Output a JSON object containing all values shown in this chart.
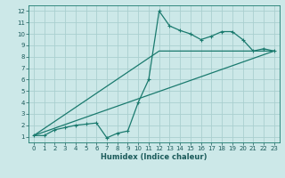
{
  "xlabel": "Humidex (Indice chaleur)",
  "bg_color": "#cce8e8",
  "grid_color": "#aacfcf",
  "line_color": "#1a7a6e",
  "xlim": [
    -0.5,
    23.5
  ],
  "ylim": [
    0.5,
    12.5
  ],
  "xticks": [
    0,
    1,
    2,
    3,
    4,
    5,
    6,
    7,
    8,
    9,
    10,
    11,
    12,
    13,
    14,
    15,
    16,
    17,
    18,
    19,
    20,
    21,
    22,
    23
  ],
  "yticks": [
    1,
    2,
    3,
    4,
    5,
    6,
    7,
    8,
    9,
    10,
    11,
    12
  ],
  "line1_x": [
    0,
    1,
    2,
    3,
    4,
    5,
    6,
    7,
    8,
    9,
    10,
    11,
    12,
    13,
    14,
    15,
    16,
    17,
    18,
    19,
    20,
    21,
    22,
    23
  ],
  "line1_y": [
    1.1,
    1.1,
    1.6,
    1.8,
    2.0,
    2.1,
    2.2,
    0.9,
    1.3,
    1.5,
    4.0,
    6.0,
    12.0,
    10.7,
    10.3,
    10.0,
    9.5,
    9.8,
    10.2,
    10.2,
    9.5,
    8.5,
    8.7,
    8.5
  ],
  "line2_x": [
    0,
    23
  ],
  "line2_y": [
    1.1,
    8.5
  ],
  "line3_x": [
    0,
    12,
    23
  ],
  "line3_y": [
    1.1,
    8.5,
    8.5
  ],
  "tick_fontsize": 5.0,
  "xlabel_fontsize": 6.0,
  "marker_size": 3.0,
  "linewidth": 0.9
}
